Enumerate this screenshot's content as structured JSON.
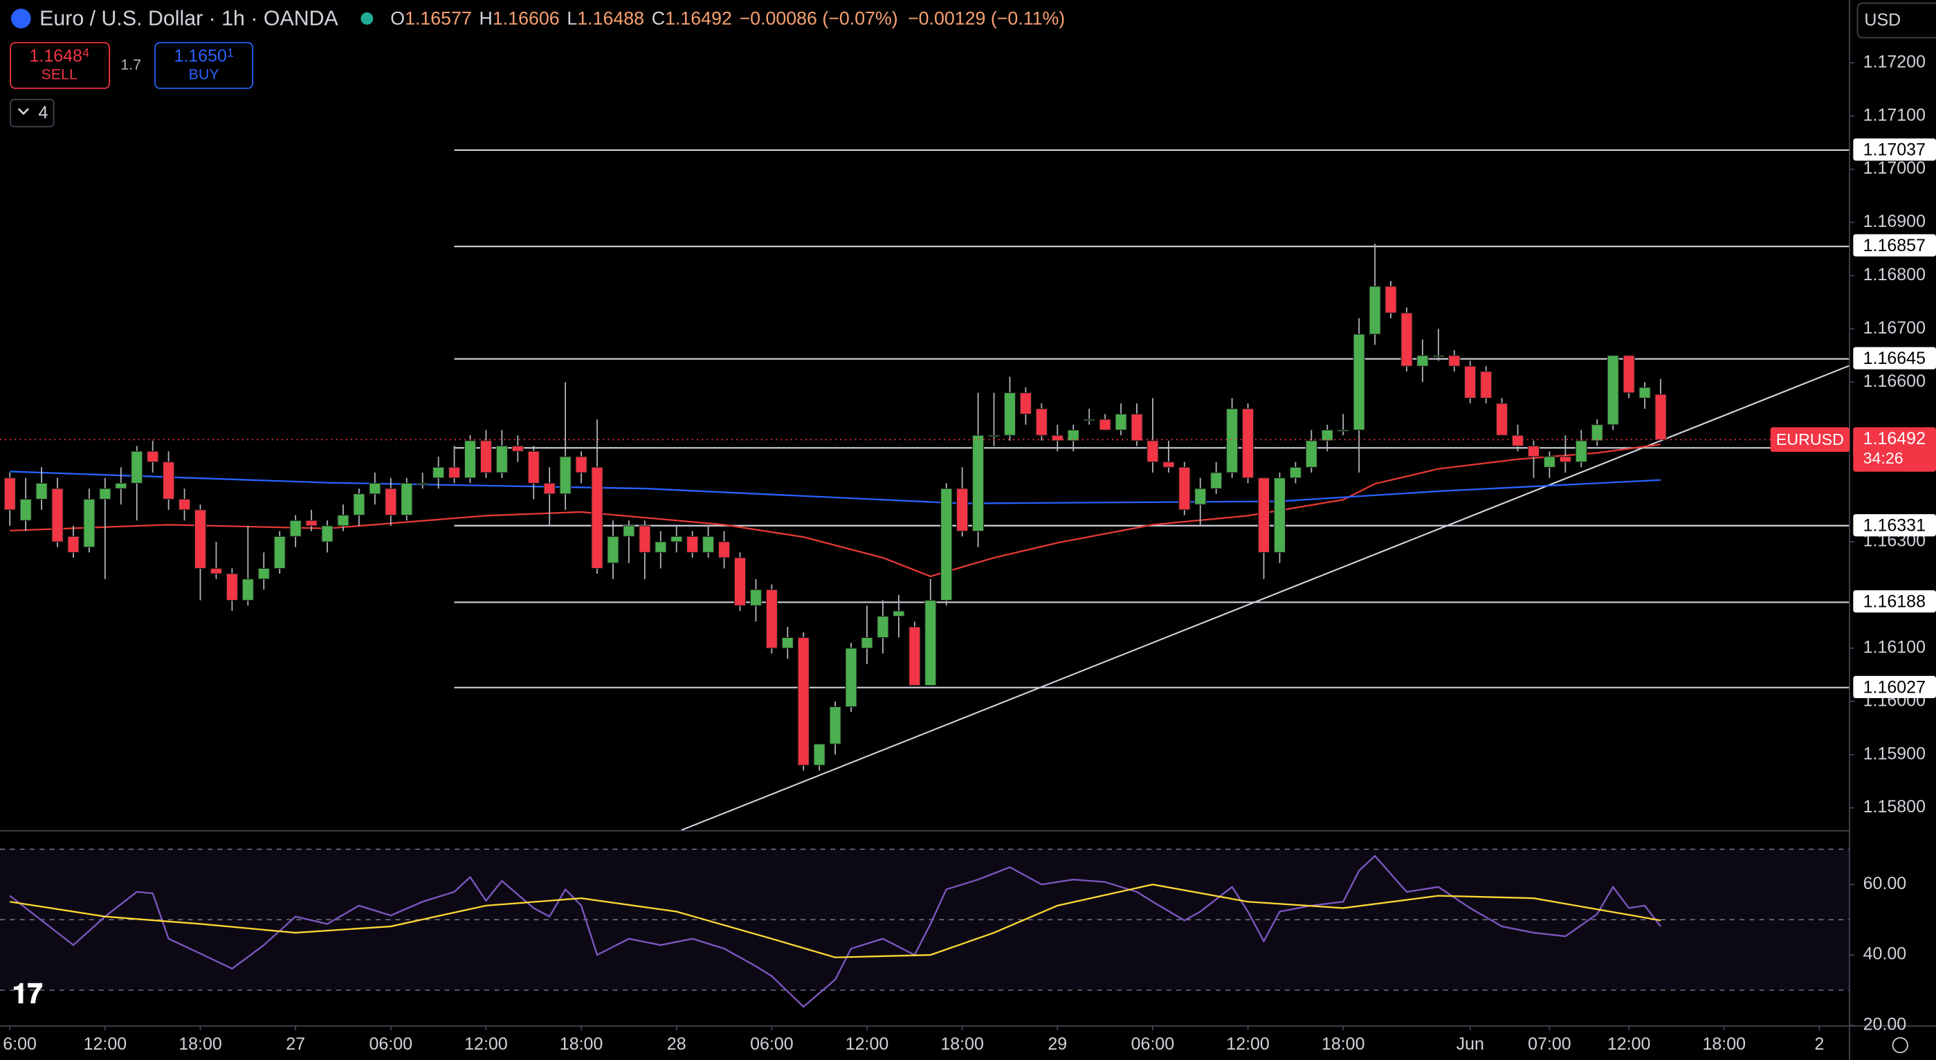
{
  "header": {
    "title": "Euro / U.S. Dollar · 1h · OANDA",
    "ohlc_labels": [
      "O",
      "H",
      "L",
      "C"
    ],
    "change": "−0.00086 (−0.07%)",
    "change2": "−0.00129 (−0.11%)"
  },
  "trade": {
    "sell_price": "1.1648",
    "sell_pip": "4",
    "sell_label": "SELL",
    "spread": "1.7",
    "buy_price": "1.1650",
    "buy_pip": "1",
    "buy_label": "BUY"
  },
  "indicators_count": "4",
  "currency": "USD",
  "chart_data": {
    "type": "candlestick",
    "up_color": "#4caf50",
    "down_color": "#f23645",
    "open": [
      1.1642,
      1.1634,
      1.1638,
      1.164,
      1.1631,
      1.1629,
      1.1638,
      1.164,
      1.1641,
      1.1647,
      1.1645,
      1.1638,
      1.1636,
      1.1625,
      1.1624,
      1.1619,
      1.1623,
      1.1625,
      1.1631,
      1.1634,
      1.163,
      1.1633,
      1.1635,
      1.1639,
      1.164,
      1.1635,
      1.1641,
      1.1642,
      1.1644,
      1.1642,
      1.1649,
      1.1643,
      1.1648,
      1.1647,
      1.1641,
      1.1639,
      1.1646,
      1.1644,
      1.1626,
      1.1631,
      1.1633,
      1.1628,
      1.163,
      1.1631,
      1.1628,
      1.163,
      1.1627,
      1.1618,
      1.1621,
      1.161,
      1.1612,
      1.1588,
      1.1592,
      1.1599,
      1.161,
      1.1612,
      1.1616,
      1.1614,
      1.1603,
      1.1619,
      1.164,
      1.1632,
      1.165,
      1.165,
      1.1658,
      1.1655,
      1.165,
      1.1649,
      1.1653,
      1.1653,
      1.1651,
      1.1654,
      1.1649,
      1.1645,
      1.1644,
      1.1637,
      1.164,
      1.1643,
      1.1655,
      1.1642,
      1.1628,
      1.1642,
      1.1644,
      1.1649,
      1.1651,
      1.1651,
      1.1669,
      1.1678,
      1.1673,
      1.1663,
      1.1665,
      1.1665,
      1.1663,
      1.1662,
      1.1656,
      1.165,
      1.1648,
      1.1644,
      1.1646,
      1.1645,
      1.1649,
      1.1652,
      1.1665,
      1.1657,
      1.16577
    ],
    "high": [
      1.1643,
      1.1642,
      1.1644,
      1.1642,
      1.1633,
      1.164,
      1.1642,
      1.1644,
      1.1648,
      1.1649,
      1.1647,
      1.164,
      1.1637,
      1.163,
      1.1625,
      1.1633,
      1.1628,
      1.1632,
      1.1635,
      1.1636,
      1.1634,
      1.1637,
      1.164,
      1.1643,
      1.1642,
      1.1642,
      1.1643,
      1.1646,
      1.1648,
      1.165,
      1.1651,
      1.1651,
      1.165,
      1.1648,
      1.1644,
      1.166,
      1.1647,
      1.1653,
      1.1634,
      1.1634,
      1.1634,
      1.1632,
      1.1633,
      1.1632,
      1.1633,
      1.1632,
      1.1628,
      1.1623,
      1.1622,
      1.1614,
      1.1613,
      1.1592,
      1.16,
      1.1611,
      1.1618,
      1.1619,
      1.162,
      1.1615,
      1.1623,
      1.1641,
      1.1644,
      1.1658,
      1.1658,
      1.1661,
      1.1659,
      1.1656,
      1.1652,
      1.1652,
      1.1655,
      1.1654,
      1.1656,
      1.1656,
      1.1657,
      1.1649,
      1.1645,
      1.1642,
      1.1645,
      1.1657,
      1.1656,
      1.1642,
      1.1643,
      1.1645,
      1.1651,
      1.1652,
      1.1654,
      1.1672,
      1.1686,
      1.1679,
      1.1674,
      1.1668,
      1.167,
      1.1666,
      1.1664,
      1.1663,
      1.1657,
      1.1652,
      1.1649,
      1.1647,
      1.165,
      1.1651,
      1.1653,
      1.1665,
      1.1665,
      1.166,
      1.16606
    ],
    "low": [
      1.1633,
      1.1632,
      1.1636,
      1.1629,
      1.1627,
      1.1628,
      1.1623,
      1.1637,
      1.1634,
      1.1643,
      1.1636,
      1.1634,
      1.1619,
      1.1623,
      1.1617,
      1.1618,
      1.1621,
      1.1624,
      1.1629,
      1.1632,
      1.1628,
      1.1632,
      1.1633,
      1.1637,
      1.1633,
      1.1634,
      1.164,
      1.164,
      1.1641,
      1.1641,
      1.1642,
      1.1642,
      1.1645,
      1.1638,
      1.1633,
      1.1636,
      1.1641,
      1.1624,
      1.1623,
      1.1626,
      1.1623,
      1.1625,
      1.1628,
      1.1627,
      1.1627,
      1.1625,
      1.1617,
      1.1615,
      1.1609,
      1.1608,
      1.1587,
      1.1587,
      1.159,
      1.1598,
      1.1607,
      1.1609,
      1.1612,
      1.1603,
      1.1603,
      1.1618,
      1.1631,
      1.1629,
      1.1648,
      1.1649,
      1.1652,
      1.1649,
      1.1647,
      1.1647,
      1.1652,
      1.1651,
      1.165,
      1.1648,
      1.1643,
      1.1643,
      1.1635,
      1.1633,
      1.1639,
      1.1642,
      1.1641,
      1.1623,
      1.1626,
      1.1641,
      1.1643,
      1.1647,
      1.165,
      1.1643,
      1.1667,
      1.1672,
      1.1662,
      1.166,
      1.1664,
      1.1662,
      1.1656,
      1.1656,
      1.165,
      1.1647,
      1.1642,
      1.1642,
      1.1643,
      1.1644,
      1.1648,
      1.1651,
      1.1657,
      1.1655,
      1.16488
    ],
    "close": [
      1.1636,
      1.1638,
      1.1641,
      1.163,
      1.1628,
      1.1638,
      1.164,
      1.1641,
      1.1647,
      1.1645,
      1.1638,
      1.1636,
      1.1625,
      1.1624,
      1.1619,
      1.1623,
      1.1625,
      1.1631,
      1.1634,
      1.1633,
      1.1633,
      1.1635,
      1.1639,
      1.1641,
      1.1635,
      1.1641,
      1.1641,
      1.1644,
      1.1642,
      1.1649,
      1.1643,
      1.1648,
      1.1647,
      1.1641,
      1.1639,
      1.1646,
      1.1643,
      1.1625,
      1.1631,
      1.1633,
      1.1628,
      1.163,
      1.1631,
      1.1628,
      1.1631,
      1.1627,
      1.1618,
      1.1621,
      1.161,
      1.1612,
      1.1588,
      1.1592,
      1.1599,
      1.161,
      1.1612,
      1.1616,
      1.1617,
      1.1603,
      1.1619,
      1.164,
      1.1632,
      1.165,
      1.165,
      1.1658,
      1.1654,
      1.165,
      1.1649,
      1.1651,
      1.1653,
      1.1651,
      1.1654,
      1.1649,
      1.1645,
      1.1644,
      1.1636,
      1.164,
      1.1643,
      1.1655,
      1.1642,
      1.1628,
      1.1642,
      1.1644,
      1.1649,
      1.1651,
      1.1651,
      1.1669,
      1.1678,
      1.1673,
      1.1663,
      1.1665,
      1.1665,
      1.1663,
      1.1657,
      1.1657,
      1.165,
      1.1648,
      1.1646,
      1.1646,
      1.1645,
      1.1649,
      1.1652,
      1.1665,
      1.1658,
      1.1659,
      1.16492
    ],
    "xlim": [
      -0.62,
      115.9
    ],
    "xticks": [
      {
        "value": 0,
        "label": "6:00"
      },
      {
        "value": 6,
        "label": "12:00"
      },
      {
        "value": 12,
        "label": "18:00"
      },
      {
        "value": 18,
        "label": "27"
      },
      {
        "value": 24,
        "label": "06:00"
      },
      {
        "value": 30,
        "label": "12:00"
      },
      {
        "value": 36,
        "label": "18:00"
      },
      {
        "value": 42,
        "label": "28"
      },
      {
        "value": 48,
        "label": "06:00"
      },
      {
        "value": 54,
        "label": "12:00"
      },
      {
        "value": 60,
        "label": "18:00"
      },
      {
        "value": 66,
        "label": "29"
      },
      {
        "value": 72,
        "label": "06:00"
      },
      {
        "value": 78,
        "label": "12:00"
      },
      {
        "value": 84,
        "label": "18:00"
      },
      {
        "value": 92,
        "label": "Jun"
      },
      {
        "value": 97,
        "label": "07:00"
      },
      {
        "value": 102,
        "label": "12:00"
      },
      {
        "value": 108,
        "label": "18:00"
      },
      {
        "value": 114,
        "label": "2"
      }
    ],
    "ylim": [
      1.15758,
      1.17318
    ],
    "yticks": [
      {
        "value": 1.172,
        "label": "1.17200"
      },
      {
        "value": 1.171,
        "label": "1.17100"
      },
      {
        "value": 1.17,
        "label": "1.17000"
      },
      {
        "value": 1.169,
        "label": "1.16900"
      },
      {
        "value": 1.168,
        "label": "1.16800"
      },
      {
        "value": 1.167,
        "label": "1.16700"
      },
      {
        "value": 1.166,
        "label": "1.16600"
      },
      {
        "value": 1.163,
        "label": "1.16300"
      },
      {
        "value": 1.161,
        "label": "1.16100"
      },
      {
        "value": 1.16,
        "label": "1.16000"
      },
      {
        "value": 1.159,
        "label": "1.15900"
      },
      {
        "value": 1.158,
        "label": "1.15800"
      }
    ],
    "moving_averages": [
      {
        "color": "#e53935",
        "x": [
          0,
          10,
          20,
          30,
          36,
          45,
          50,
          55,
          58,
          62,
          66,
          72,
          78,
          84,
          86,
          90,
          95,
          100,
          104
        ],
        "values": [
          1.16321,
          1.16332,
          1.16325,
          1.16349,
          1.16356,
          1.16332,
          1.16309,
          1.1627,
          1.16235,
          1.1627,
          1.16298,
          1.16332,
          1.16349,
          1.16379,
          1.16409,
          1.16437,
          1.16455,
          1.16467,
          1.16483
        ]
      },
      {
        "color": "#2962ff",
        "x": [
          0,
          20,
          40,
          60,
          80,
          90,
          104
        ],
        "values": [
          1.16432,
          1.16411,
          1.164,
          1.16372,
          1.16376,
          1.16395,
          1.16416
        ]
      }
    ],
    "levels": {
      "start": 28,
      "color": "#d1d4dc",
      "values": [
        1.17037,
        1.16857,
        1.16645,
        1.16478,
        1.16331,
        1.16188,
        1.16027
      ]
    },
    "trendline": {
      "color": "#d1d4dc",
      "x": [
        42.3,
        115.9
      ],
      "values": [
        1.15758,
        1.16631
      ]
    },
    "last_price": {
      "symbol": "EURUSD",
      "countdown": "34:26",
      "color": "#f23645"
    },
    "rsi": {
      "ylim": [
        20,
        74.7
      ],
      "yticks": [
        {
          "value": 60,
          "label": "60.00"
        },
        {
          "value": 40,
          "label": "40.00"
        },
        {
          "value": 20,
          "label": "20.00"
        }
      ],
      "levels": [
        70,
        50,
        30
      ],
      "series": [
        {
          "color": "#7e57c2",
          "x": [
            0,
            2,
            4,
            6,
            8,
            9,
            10,
            12,
            14,
            16,
            18,
            20,
            22,
            24,
            26,
            28,
            29,
            30,
            31,
            33,
            34,
            35,
            36,
            37,
            39,
            41,
            43,
            45,
            47,
            48,
            50,
            52,
            53,
            55,
            57,
            58,
            59,
            61,
            63,
            65,
            67,
            69,
            71,
            72,
            74,
            75,
            77,
            78,
            79,
            80,
            82,
            84,
            85,
            86,
            88,
            90,
            92,
            94,
            96,
            98,
            100,
            101,
            102,
            103,
            104
          ],
          "values": [
            56.8,
            49.8,
            42.8,
            50.9,
            57.9,
            57.5,
            44.6,
            40.4,
            36.1,
            42.8,
            50.9,
            48.8,
            54,
            51.2,
            55.1,
            57.9,
            62.1,
            55.4,
            61,
            53.3,
            50.9,
            58.6,
            54,
            40,
            44.6,
            42.8,
            44.6,
            41.8,
            36.8,
            34,
            25.3,
            33,
            41.8,
            44.6,
            40,
            48.8,
            58.6,
            61.4,
            64.9,
            60,
            61.4,
            60.7,
            57.9,
            55.1,
            49.8,
            52.3,
            59.3,
            52.3,
            43.9,
            52.3,
            54,
            55.1,
            63.9,
            68.1,
            57.9,
            59.3,
            53.3,
            48.1,
            46.3,
            45.3,
            51.6,
            59.3,
            53.3,
            54,
            48.1
          ]
        },
        {
          "color": "#fdd835",
          "x": [
            0,
            6,
            12,
            18,
            24,
            30,
            36,
            42,
            48,
            52,
            58,
            62,
            66,
            72,
            78,
            84,
            90,
            96,
            104
          ],
          "values": [
            55.1,
            50.9,
            48.8,
            46.3,
            48.1,
            54,
            56.1,
            52.3,
            44.6,
            39.3,
            40,
            46.3,
            54,
            60,
            55.1,
            53.3,
            56.8,
            56.1,
            49.8
          ]
        }
      ]
    }
  }
}
